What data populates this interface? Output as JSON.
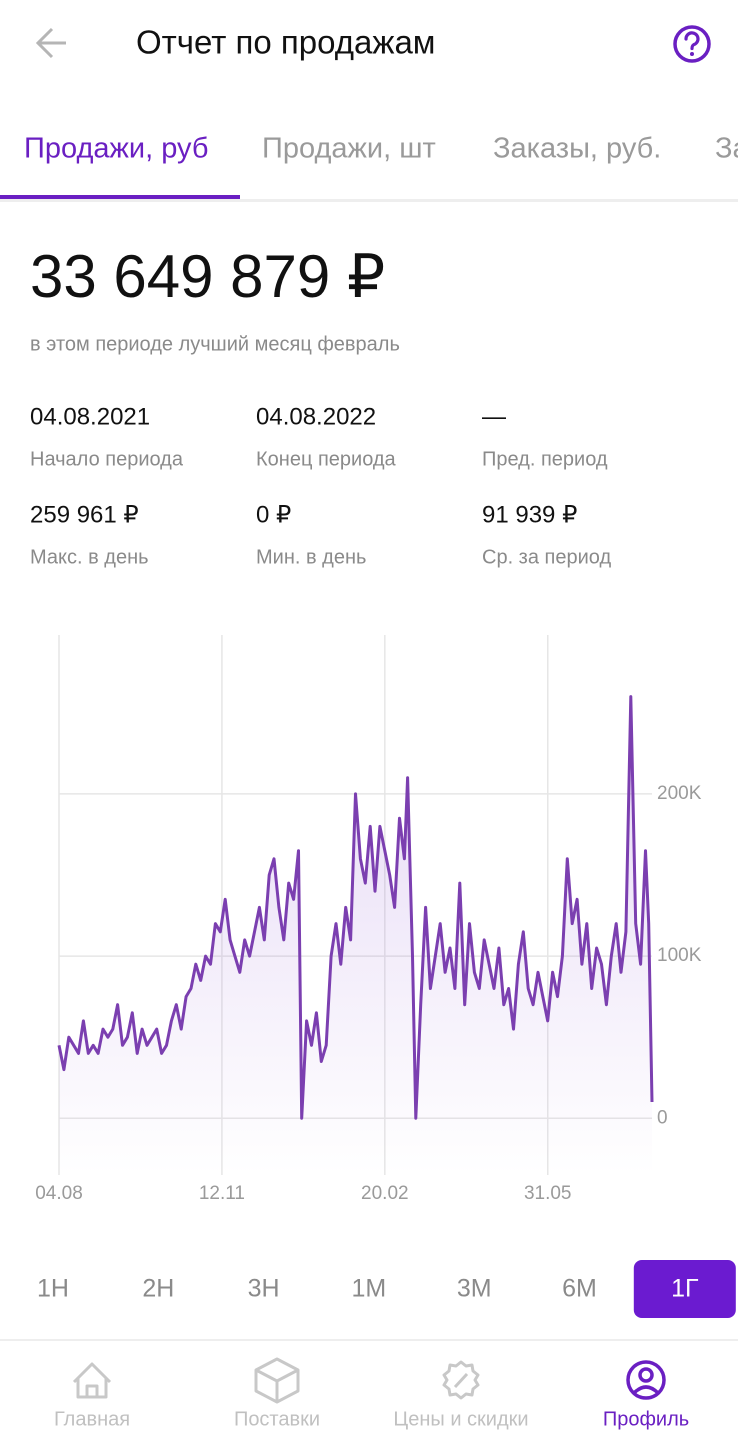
{
  "header": {
    "title": "Отчет по продажам"
  },
  "tabs": {
    "items": [
      "Продажи, руб",
      "Продажи, шт",
      "Заказы, руб.",
      "За"
    ],
    "active": 0
  },
  "summary": {
    "total": "33 649 879 ₽",
    "note": "в этом периоде лучший месяц февраль"
  },
  "stats": [
    {
      "value": "04.08.2021",
      "label": "Начало периода"
    },
    {
      "value": "04.08.2022",
      "label": "Конец периода"
    },
    {
      "value": "—",
      "label": "Пред. период"
    },
    {
      "value": "259 961 ₽",
      "label": "Макс. в день"
    },
    {
      "value": "0 ₽",
      "label": "Мин. в день"
    },
    {
      "value": "91 939 ₽",
      "label": "Ср. за период"
    }
  ],
  "chart_data": {
    "type": "line",
    "color": "#7b3fb0",
    "grid": true,
    "x": [
      0,
      3,
      6,
      9,
      12,
      15,
      18,
      21,
      24,
      27,
      30,
      33,
      36,
      39,
      42,
      45,
      48,
      51,
      54,
      57,
      60,
      63,
      66,
      69,
      72,
      75,
      78,
      81,
      84,
      87,
      90,
      93,
      96,
      99,
      102,
      105,
      108,
      111,
      114,
      117,
      120,
      123,
      126,
      129,
      132,
      135,
      138,
      141,
      144,
      147,
      149,
      152,
      155,
      158,
      161,
      164,
      167,
      170,
      173,
      176,
      179,
      182,
      185,
      188,
      191,
      194,
      197,
      200,
      203,
      206,
      209,
      212,
      214,
      217,
      219,
      222,
      225,
      228,
      231,
      234,
      237,
      240,
      243,
      246,
      249,
      252,
      255,
      258,
      261,
      264,
      267,
      270,
      273,
      276,
      279,
      282,
      285,
      288,
      291,
      294,
      297,
      300,
      303,
      306,
      309,
      312,
      315,
      318,
      321,
      324,
      327,
      330,
      333,
      336,
      339,
      342,
      345,
      348,
      351,
      354,
      357,
      360,
      362,
      364
    ],
    "values": [
      45000,
      30000,
      50000,
      45000,
      40000,
      60000,
      40000,
      45000,
      40000,
      55000,
      50000,
      55000,
      70000,
      45000,
      50000,
      65000,
      40000,
      55000,
      45000,
      50000,
      55000,
      40000,
      45000,
      60000,
      70000,
      55000,
      75000,
      80000,
      95000,
      85000,
      100000,
      95000,
      120000,
      115000,
      135000,
      110000,
      100000,
      90000,
      110000,
      100000,
      115000,
      130000,
      110000,
      150000,
      160000,
      130000,
      110000,
      145000,
      135000,
      165000,
      0,
      60000,
      45000,
      65000,
      35000,
      45000,
      100000,
      120000,
      95000,
      130000,
      110000,
      200000,
      160000,
      145000,
      180000,
      140000,
      180000,
      165000,
      150000,
      130000,
      185000,
      160000,
      210000,
      100000,
      0,
      70000,
      130000,
      80000,
      100000,
      120000,
      90000,
      105000,
      80000,
      145000,
      70000,
      120000,
      90000,
      80000,
      110000,
      95000,
      80000,
      105000,
      70000,
      80000,
      55000,
      95000,
      115000,
      80000,
      70000,
      90000,
      75000,
      60000,
      90000,
      75000,
      100000,
      160000,
      120000,
      135000,
      95000,
      120000,
      80000,
      105000,
      95000,
      70000,
      100000,
      120000,
      90000,
      115000,
      260000,
      120000,
      95000,
      165000,
      120000,
      10000
    ],
    "xlim": [
      0,
      364
    ],
    "xticks": [
      {
        "value": 0,
        "label": "04.08"
      },
      {
        "value": 100,
        "label": "12.11"
      },
      {
        "value": 200,
        "label": "20.02"
      },
      {
        "value": 300,
        "label": "31.05"
      }
    ],
    "ylim": [
      -35000,
      298000
    ],
    "yticks": [
      0,
      {
        "value": 100000,
        "label": "100K"
      },
      {
        "value": 200000,
        "label": "200K"
      }
    ]
  },
  "periods": {
    "items": [
      "1Н",
      "2Н",
      "3Н",
      "1М",
      "3М",
      "6М",
      "1Г"
    ],
    "active": 6
  },
  "nav": {
    "items": [
      "Главная",
      "Поставки",
      "Цены и скидки",
      "Профиль"
    ],
    "active": 3
  }
}
